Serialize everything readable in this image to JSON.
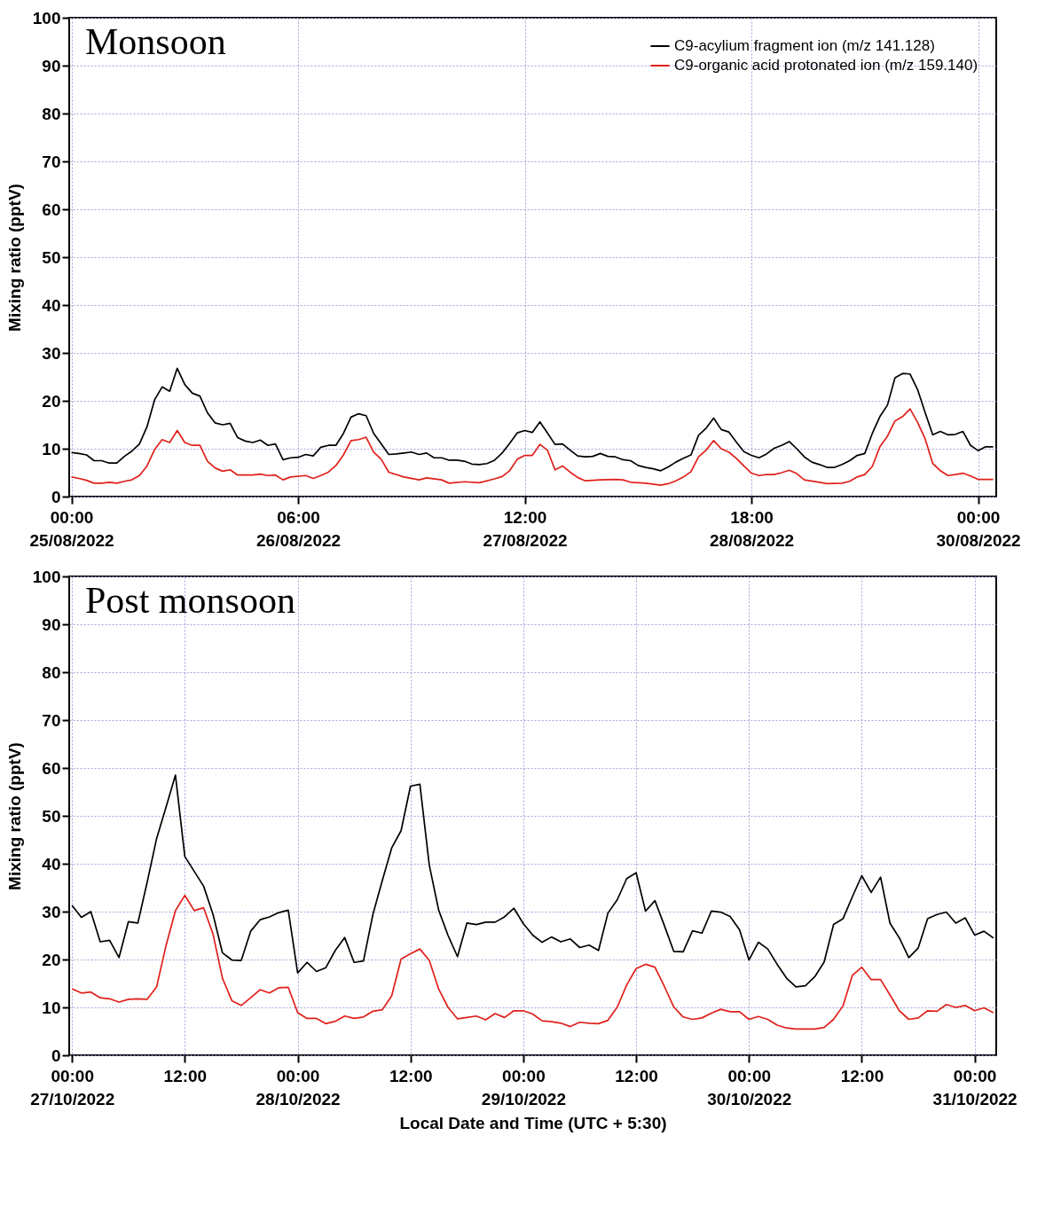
{
  "chart_data": [
    {
      "type": "line",
      "title": "Monsoon",
      "ylabel": "Mixing ratio (pptV)",
      "xlim": [
        "2022-08-24T23:42",
        "2022-08-30T02:24"
      ],
      "ylim": [
        0,
        100
      ],
      "xticks": [
        {
          "value": "2022-08-25T00:00",
          "label": "00:00\n25/08/2022"
        },
        {
          "value": "2022-08-26T06:00",
          "label": "06:00\n26/08/2022"
        },
        {
          "value": "2022-08-27T12:00",
          "label": "12:00\n27/08/2022"
        },
        {
          "value": "2022-08-28T18:00",
          "label": "18:00\n28/08/2022"
        },
        {
          "value": "2022-08-30T00:00",
          "label": "00:00\n30/08/2022"
        }
      ],
      "yticks": [
        0,
        10,
        20,
        30,
        40,
        50,
        60,
        70,
        80,
        90,
        100
      ],
      "grid": true,
      "legend": "top right",
      "x": [
        "2022-08-25T00:00",
        "2022-08-25T01:00",
        "2022-08-25T02:00",
        "2022-08-25T03:00",
        "2022-08-25T04:00",
        "2022-08-25T05:00",
        "2022-08-25T06:00",
        "2022-08-25T07:00",
        "2022-08-25T08:00",
        "2022-08-25T09:00",
        "2022-08-25T10:00",
        "2022-08-25T11:00",
        "2022-08-25T12:00",
        "2022-08-25T13:00",
        "2022-08-25T14:00",
        "2022-08-25T15:00",
        "2022-08-25T16:00",
        "2022-08-25T17:00",
        "2022-08-25T18:00",
        "2022-08-25T19:00",
        "2022-08-25T20:00",
        "2022-08-25T21:00",
        "2022-08-25T22:00",
        "2022-08-25T23:00",
        "2022-08-26T00:00",
        "2022-08-26T01:00",
        "2022-08-26T02:00",
        "2022-08-26T03:00",
        "2022-08-26T04:00",
        "2022-08-26T05:00",
        "2022-08-26T06:00",
        "2022-08-26T07:00",
        "2022-08-26T08:00",
        "2022-08-26T09:00",
        "2022-08-26T10:00",
        "2022-08-26T11:00",
        "2022-08-26T12:00",
        "2022-08-26T13:00",
        "2022-08-26T14:00",
        "2022-08-26T15:00",
        "2022-08-26T16:00",
        "2022-08-26T17:00",
        "2022-08-26T18:00",
        "2022-08-26T19:00",
        "2022-08-26T20:00",
        "2022-08-26T21:00",
        "2022-08-26T22:00",
        "2022-08-26T23:00",
        "2022-08-27T00:00",
        "2022-08-27T01:00",
        "2022-08-27T02:00",
        "2022-08-27T03:00",
        "2022-08-27T04:00",
        "2022-08-27T05:00",
        "2022-08-27T06:00",
        "2022-08-27T07:00",
        "2022-08-27T08:00",
        "2022-08-27T09:00",
        "2022-08-27T10:00",
        "2022-08-27T11:00",
        "2022-08-27T12:00",
        "2022-08-27T13:00",
        "2022-08-27T14:00",
        "2022-08-27T15:00",
        "2022-08-27T16:00",
        "2022-08-27T17:00",
        "2022-08-27T18:00",
        "2022-08-27T19:00",
        "2022-08-27T20:00",
        "2022-08-27T21:00",
        "2022-08-27T22:00",
        "2022-08-27T23:00",
        "2022-08-28T00:00",
        "2022-08-28T01:00",
        "2022-08-28T02:00",
        "2022-08-28T03:00",
        "2022-08-28T04:00",
        "2022-08-28T05:00",
        "2022-08-28T06:00",
        "2022-08-28T07:00",
        "2022-08-28T08:00",
        "2022-08-28T09:00",
        "2022-08-28T10:00",
        "2022-08-28T11:00",
        "2022-08-28T12:00",
        "2022-08-28T13:00",
        "2022-08-28T14:00",
        "2022-08-28T15:00",
        "2022-08-28T16:00",
        "2022-08-28T17:00",
        "2022-08-28T18:00",
        "2022-08-28T19:00",
        "2022-08-28T20:00",
        "2022-08-28T21:00",
        "2022-08-28T22:00",
        "2022-08-28T23:00",
        "2022-08-29T00:00",
        "2022-08-29T01:00",
        "2022-08-29T02:00",
        "2022-08-29T03:00",
        "2022-08-29T04:00",
        "2022-08-29T05:00",
        "2022-08-29T06:00",
        "2022-08-29T07:00",
        "2022-08-29T08:00",
        "2022-08-29T09:00",
        "2022-08-29T10:00",
        "2022-08-29T11:00",
        "2022-08-29T12:00",
        "2022-08-29T13:00",
        "2022-08-29T14:00",
        "2022-08-29T15:00",
        "2022-08-29T16:00",
        "2022-08-29T17:00",
        "2022-08-29T18:00",
        "2022-08-29T19:00",
        "2022-08-29T20:00",
        "2022-08-29T21:00",
        "2022-08-29T22:00",
        "2022-08-29T23:00",
        "2022-08-30T00:00",
        "2022-08-30T01:00",
        "2022-08-30T02:00"
      ],
      "series": [
        {
          "name": "C9-acylium fragment ion (m/z 141.128)",
          "color": "#000000",
          "values": [
            9.2,
            9.0,
            8.7,
            7.5,
            7.5,
            7.0,
            7.0,
            8.4,
            9.5,
            11.0,
            14.6,
            20.2,
            22.9,
            22.0,
            26.8,
            23.4,
            21.6,
            21.0,
            17.5,
            15.4,
            15.0,
            15.3,
            12.3,
            11.6,
            11.3,
            11.8,
            10.7,
            11.0,
            7.7,
            8.1,
            8.2,
            8.8,
            8.5,
            10.3,
            10.7,
            10.7,
            13.2,
            16.6,
            17.3,
            16.9,
            13.2,
            11.0,
            8.8,
            8.9,
            9.1,
            9.3,
            8.8,
            9.1,
            8.1,
            8.1,
            7.6,
            7.6,
            7.4,
            6.8,
            6.7,
            6.9,
            7.6,
            9.1,
            11.1,
            13.3,
            13.8,
            13.4,
            15.6,
            13.3,
            10.9,
            11.0,
            9.7,
            8.5,
            8.3,
            8.4,
            9.0,
            8.4,
            8.3,
            7.7,
            7.5,
            6.5,
            6.1,
            5.8,
            5.4,
            6.2,
            7.2,
            8.0,
            8.7,
            12.8,
            14.3,
            16.4,
            14.0,
            13.5,
            11.4,
            9.4,
            8.6,
            8.1,
            8.9,
            10.1,
            10.7,
            11.5,
            10.0,
            8.3,
            7.2,
            6.7,
            6.1,
            6.1,
            6.7,
            7.5,
            8.6,
            9.0,
            13.2,
            16.7,
            19.1,
            24.8,
            25.7,
            25.6,
            22.3,
            17.5,
            12.9,
            13.6,
            12.9,
            13.0,
            13.6,
            10.7,
            9.6,
            10.4,
            10.4
          ]
        },
        {
          "name": "C9-organic acid protonated ion (m/z 159.140)",
          "color": "#e0201b",
          "x": [
            "2022-08-25T00:00",
            "2022-08-25T01:00",
            "2022-08-25T02:00",
            "2022-08-25T03:00",
            "2022-08-25T04:00",
            "2022-08-25T05:00",
            "2022-08-25T06:00",
            "2022-08-25T07:00",
            "2022-08-25T08:00",
            "2022-08-25T09:00",
            "2022-08-25T10:00",
            "2022-08-25T11:00",
            "2022-08-25T12:00",
            "2022-08-25T13:00",
            "2022-08-25T14:00",
            "2022-08-25T15:00",
            "2022-08-25T16:00",
            "2022-08-25T17:00",
            "2022-08-25T18:00",
            "2022-08-25T19:00",
            "2022-08-25T20:00",
            "2022-08-25T21:00",
            "2022-08-25T22:00",
            "2022-08-26T00:00",
            "2022-08-26T01:00",
            "2022-08-26T02:00",
            "2022-08-26T03:00",
            "2022-08-26T04:00",
            "2022-08-26T05:00",
            "2022-08-26T07:00",
            "2022-08-26T08:00",
            "2022-08-26T09:00",
            "2022-08-26T10:00",
            "2022-08-26T11:00",
            "2022-08-26T12:00",
            "2022-08-26T13:00",
            "2022-08-26T14:00",
            "2022-08-26T15:00",
            "2022-08-26T16:00",
            "2022-08-26T17:00",
            "2022-08-26T18:00",
            "2022-08-26T20:00",
            "2022-08-26T22:00",
            "2022-08-26T23:00",
            "2022-08-27T01:00",
            "2022-08-27T02:00",
            "2022-08-27T04:00",
            "2022-08-27T06:00",
            "2022-08-27T08:00",
            "2022-08-27T09:00",
            "2022-08-27T10:00",
            "2022-08-27T11:00",
            "2022-08-27T12:00",
            "2022-08-27T13:00",
            "2022-08-27T14:00",
            "2022-08-27T15:00",
            "2022-08-27T16:00",
            "2022-08-27T17:00",
            "2022-08-27T18:00",
            "2022-08-27T19:00",
            "2022-08-27T20:00",
            "2022-08-27T22:00",
            "2022-08-28T00:00",
            "2022-08-28T01:00",
            "2022-08-28T02:00",
            "2022-08-28T04:00",
            "2022-08-28T06:00",
            "2022-08-28T07:00",
            "2022-08-28T08:00",
            "2022-08-28T09:00",
            "2022-08-28T10:00",
            "2022-08-28T11:00",
            "2022-08-28T12:00",
            "2022-08-28T13:00",
            "2022-08-28T14:00",
            "2022-08-28T15:00",
            "2022-08-28T16:00",
            "2022-08-28T17:00",
            "2022-08-28T18:00",
            "2022-08-28T19:00",
            "2022-08-28T20:00",
            "2022-08-28T21:00",
            "2022-08-28T22:00",
            "2022-08-28T23:00",
            "2022-08-29T00:00",
            "2022-08-29T01:00",
            "2022-08-29T03:00",
            "2022-08-29T04:00",
            "2022-08-29T06:00",
            "2022-08-29T07:00",
            "2022-08-29T08:00",
            "2022-08-29T09:00",
            "2022-08-29T10:00",
            "2022-08-29T11:00",
            "2022-08-29T12:00",
            "2022-08-29T13:00",
            "2022-08-29T14:00",
            "2022-08-29T15:00",
            "2022-08-29T16:00",
            "2022-08-29T17:00",
            "2022-08-29T18:00",
            "2022-08-29T19:00",
            "2022-08-29T20:00",
            "2022-08-29T21:00",
            "2022-08-29T22:00",
            "2022-08-29T23:00",
            "2022-08-30T00:00",
            "2022-08-30T01:00",
            "2022-08-30T02:00"
          ],
          "values": [
            4.1,
            3.8,
            3.4,
            2.8,
            2.8,
            3.0,
            2.8,
            3.2,
            3.5,
            4.4,
            6.4,
            9.8,
            11.9,
            11.3,
            13.8,
            11.3,
            10.7,
            10.7,
            7.4,
            6.0,
            5.3,
            5.6,
            4.5,
            4.5,
            4.7,
            4.4,
            4.5,
            3.5,
            4.1,
            4.4,
            3.8,
            4.4,
            5.1,
            6.5,
            8.7,
            11.7,
            11.9,
            12.4,
            9.3,
            7.8,
            5.1,
            4.1,
            3.5,
            3.9,
            3.5,
            2.8,
            3.1,
            2.9,
            3.7,
            4.2,
            5.4,
            7.8,
            8.6,
            8.6,
            10.9,
            9.7,
            5.6,
            6.4,
            5.1,
            4.0,
            3.3,
            3.5,
            3.6,
            3.5,
            3.0,
            2.8,
            2.4,
            2.7,
            3.3,
            4.1,
            5.2,
            8.3,
            9.7,
            11.7,
            10.0,
            9.3,
            8.0,
            6.4,
            4.9,
            4.4,
            4.6,
            4.6,
            5.0,
            5.5,
            4.8,
            3.5,
            3.0,
            2.7,
            2.8,
            3.2,
            4.1,
            4.6,
            6.3,
            10.4,
            12.6,
            15.8,
            16.7,
            18.3,
            15.5,
            12.0,
            6.9,
            5.4,
            4.4,
            4.6,
            4.9,
            4.3,
            3.6,
            3.6,
            3.6
          ]
        }
      ]
    },
    {
      "type": "line",
      "title": "Post monsoon",
      "ylabel": "Mixing ratio (pptV)",
      "xlabel": "Local Date and Time (UTC + 5:30)",
      "xlim": [
        "2022-10-26T23:42",
        "2022-10-31T02:18"
      ],
      "ylim": [
        0,
        100
      ],
      "xticks": [
        {
          "value": "2022-10-27T00:00",
          "label": "00:00\n27/10/2022"
        },
        {
          "value": "2022-10-27T12:00",
          "label": "12:00"
        },
        {
          "value": "2022-10-28T00:00",
          "label": "00:00\n28/10/2022"
        },
        {
          "value": "2022-10-28T12:00",
          "label": "12:00"
        },
        {
          "value": "2022-10-29T00:00",
          "label": "00:00\n29/10/2022"
        },
        {
          "value": "2022-10-29T12:00",
          "label": "12:00"
        },
        {
          "value": "2022-10-30T00:00",
          "label": "00:00\n30/10/2022"
        },
        {
          "value": "2022-10-30T12:00",
          "label": "12:00"
        },
        {
          "value": "2022-10-31T00:00",
          "label": "00:00\n31/10/2022"
        }
      ],
      "yticks": [
        0,
        10,
        20,
        30,
        40,
        50,
        60,
        70,
        80,
        90,
        100
      ],
      "grid": true,
      "legend": "top right",
      "x": [
        "2022-10-27T00:00",
        "2022-10-27T01:00",
        "2022-10-27T02:00",
        "2022-10-27T03:00",
        "2022-10-27T04:00",
        "2022-10-27T05:00",
        "2022-10-27T06:00",
        "2022-10-27T07:00",
        "2022-10-27T08:00",
        "2022-10-27T09:00",
        "2022-10-27T10:00",
        "2022-10-27T11:00",
        "2022-10-27T12:00",
        "2022-10-27T13:00",
        "2022-10-27T14:00",
        "2022-10-27T15:00",
        "2022-10-27T16:00",
        "2022-10-27T17:00",
        "2022-10-27T18:00",
        "2022-10-27T19:00",
        "2022-10-27T20:00",
        "2022-10-27T21:00",
        "2022-10-27T22:00",
        "2022-10-27T23:00",
        "2022-10-28T00:00",
        "2022-10-28T01:00",
        "2022-10-28T02:00",
        "2022-10-28T03:00",
        "2022-10-28T04:00",
        "2022-10-28T05:00",
        "2022-10-28T06:00",
        "2022-10-28T07:00",
        "2022-10-28T08:00",
        "2022-10-28T09:00",
        "2022-10-28T10:00",
        "2022-10-28T11:00",
        "2022-10-28T12:00",
        "2022-10-28T13:00",
        "2022-10-28T14:00",
        "2022-10-28T15:00",
        "2022-10-28T16:00",
        "2022-10-28T17:00",
        "2022-10-28T18:00",
        "2022-10-28T19:00",
        "2022-10-28T20:00",
        "2022-10-28T21:00",
        "2022-10-28T22:00",
        "2022-10-28T23:00",
        "2022-10-29T00:00",
        "2022-10-29T01:00",
        "2022-10-29T02:00",
        "2022-10-29T03:00",
        "2022-10-29T04:00",
        "2022-10-29T05:00",
        "2022-10-29T06:00",
        "2022-10-29T07:00",
        "2022-10-29T08:00",
        "2022-10-29T09:00",
        "2022-10-29T10:00",
        "2022-10-29T11:00",
        "2022-10-29T12:00",
        "2022-10-29T13:00",
        "2022-10-29T14:00",
        "2022-10-29T15:00",
        "2022-10-29T16:00",
        "2022-10-29T17:00",
        "2022-10-29T18:00",
        "2022-10-29T19:00",
        "2022-10-29T20:00",
        "2022-10-29T21:00",
        "2022-10-29T22:00",
        "2022-10-29T23:00",
        "2022-10-30T00:00",
        "2022-10-30T01:00",
        "2022-10-30T02:00",
        "2022-10-30T03:00",
        "2022-10-30T04:00",
        "2022-10-30T05:00",
        "2022-10-30T06:00",
        "2022-10-30T07:00",
        "2022-10-30T08:00",
        "2022-10-30T09:00",
        "2022-10-30T10:00",
        "2022-10-30T11:00",
        "2022-10-30T12:00",
        "2022-10-30T13:00",
        "2022-10-30T14:00",
        "2022-10-30T15:00",
        "2022-10-30T16:00",
        "2022-10-30T17:00",
        "2022-10-30T18:00",
        "2022-10-30T19:00",
        "2022-10-30T20:00",
        "2022-10-30T21:00",
        "2022-10-30T22:00",
        "2022-10-30T23:00",
        "2022-10-31T00:00",
        "2022-10-31T01:00",
        "2022-10-31T02:00"
      ],
      "series": [
        {
          "name": "C9-acylium fragment ion (m/z 141.128)",
          "color": "#000000",
          "values": [
            31.3,
            28.8,
            30.0,
            23.7,
            24.0,
            20.4,
            27.9,
            27.6,
            36.2,
            45.3,
            51.8,
            58.5,
            41.5,
            38.4,
            35.3,
            29.4,
            21.4,
            19.9,
            19.8,
            25.9,
            28.3,
            28.9,
            29.8,
            30.3,
            17.2,
            19.4,
            17.5,
            18.3,
            21.9,
            24.6,
            19.4,
            19.7,
            29.4,
            36.5,
            43.3,
            46.9,
            56.2,
            56.6,
            39.7,
            30.3,
            25.0,
            20.6,
            27.6,
            27.3,
            27.8,
            27.8,
            28.9,
            30.7,
            27.5,
            25.1,
            23.6,
            24.7,
            23.7,
            24.3,
            22.5,
            23.0,
            21.9,
            29.7,
            32.5,
            36.9,
            38.1,
            30.1,
            32.3,
            27.1,
            21.7,
            21.6,
            26.0,
            25.5,
            30.1,
            29.9,
            29.0,
            26.2,
            19.9,
            23.6,
            22.2,
            19.0,
            16.1,
            14.3,
            14.5,
            16.4,
            19.5,
            27.3,
            28.5,
            33.1,
            37.5,
            34.0,
            37.2,
            27.6,
            24.5,
            20.4,
            22.4,
            28.5,
            29.4,
            29.9,
            27.6,
            28.7,
            25.1,
            25.9,
            24.5
          ]
        },
        {
          "name": "C9-organic acid protonated ion (m/z 159.140)",
          "color": "#e0201b",
          "values": [
            13.9,
            13.0,
            13.2,
            12.0,
            11.8,
            11.1,
            11.7,
            11.8,
            11.7,
            14.3,
            22.9,
            30.2,
            33.4,
            30.2,
            30.8,
            25.3,
            16.1,
            11.4,
            10.4,
            12.0,
            13.7,
            13.0,
            14.1,
            14.2,
            8.9,
            7.7,
            7.7,
            6.6,
            7.1,
            8.2,
            7.7,
            8.0,
            9.2,
            9.5,
            12.4,
            20.1,
            21.2,
            22.2,
            19.8,
            13.8,
            10.0,
            7.6,
            7.9,
            8.2,
            7.4,
            8.7,
            7.9,
            9.3,
            9.3,
            8.6,
            7.2,
            7.0,
            6.7,
            6.0,
            6.9,
            6.7,
            6.6,
            7.3,
            10.1,
            14.7,
            18.1,
            19.0,
            18.4,
            14.4,
            10.1,
            8.0,
            7.5,
            7.8,
            8.8,
            9.6,
            9.1,
            9.1,
            7.5,
            8.1,
            7.5,
            6.3,
            5.7,
            5.5,
            5.5,
            5.5,
            5.8,
            7.5,
            10.3,
            16.7,
            18.4,
            15.8,
            15.8,
            12.6,
            9.3,
            7.5,
            7.8,
            9.3,
            9.2,
            10.6,
            10.0,
            10.4,
            9.3,
            9.9,
            8.9
          ]
        }
      ]
    }
  ]
}
